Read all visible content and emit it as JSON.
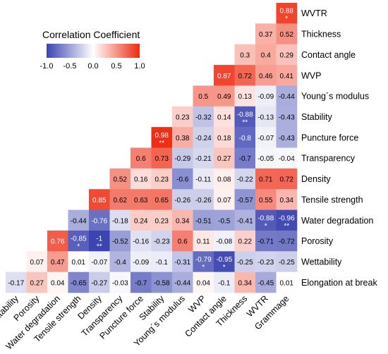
{
  "legend": {
    "title": "Correlation Coefficient",
    "ticks": [
      "-1.0",
      "-0.5",
      "0.0",
      "0.5",
      "1.0"
    ],
    "tick_values": [
      -1.0,
      -0.5,
      0.0,
      0.5,
      1.0
    ],
    "colors": {
      "negative": "#3b44b0",
      "neutral": "#ffffff",
      "positive": "#ee2a10"
    }
  },
  "chart_data": {
    "type": "heatmap",
    "title": "",
    "row_labels": [
      "WVTR",
      "Thickness",
      "Contact angle",
      "WVP",
      "Young´s modulus",
      "Stability",
      "Puncture force",
      "Transparency",
      "Density",
      "Tensile strength",
      "Water degradation",
      "Porosity",
      "Wettability",
      "Elongation at break"
    ],
    "col_labels": [
      "Wettability",
      "Porosity",
      "Water degradation",
      "Tensile strength",
      "Density",
      "Transparency",
      "Puncture force",
      "Stability",
      "Young´s modulus",
      "WVP",
      "Contact angle",
      "Thickness",
      "WVTR",
      "Grammage"
    ],
    "cells": [
      [
        {
          "c": 13,
          "v": "0.88",
          "s": "*"
        }
      ],
      [
        {
          "c": 12,
          "v": "0.37"
        },
        {
          "c": 13,
          "v": "0.52"
        }
      ],
      [
        {
          "c": 11,
          "v": "0.3"
        },
        {
          "c": 12,
          "v": "0.4"
        },
        {
          "c": 13,
          "v": "0.29"
        }
      ],
      [
        {
          "c": 10,
          "v": "0.87"
        },
        {
          "c": 11,
          "v": "0.72"
        },
        {
          "c": 12,
          "v": "0.46"
        },
        {
          "c": 13,
          "v": "0.41"
        }
      ],
      [
        {
          "c": 9,
          "v": "0.5"
        },
        {
          "c": 10,
          "v": "0.49"
        },
        {
          "c": 11,
          "v": "0.13"
        },
        {
          "c": 12,
          "v": "-0.09"
        },
        {
          "c": 13,
          "v": "-0.44"
        }
      ],
      [
        {
          "c": 8,
          "v": "0.23"
        },
        {
          "c": 9,
          "v": "-0.32"
        },
        {
          "c": 10,
          "v": "0.14"
        },
        {
          "c": 11,
          "v": "-0.88",
          "s": "**"
        },
        {
          "c": 12,
          "v": "-0.13"
        },
        {
          "c": 13,
          "v": "-0.43"
        }
      ],
      [
        {
          "c": 7,
          "v": "0.98",
          "s": "**"
        },
        {
          "c": 8,
          "v": "0.38"
        },
        {
          "c": 9,
          "v": "-0.24"
        },
        {
          "c": 10,
          "v": "0.18"
        },
        {
          "c": 11,
          "v": "-0.8"
        },
        {
          "c": 12,
          "v": "-0.07"
        },
        {
          "c": 13,
          "v": "-0.43"
        }
      ],
      [
        {
          "c": 6,
          "v": "0.6"
        },
        {
          "c": 7,
          "v": "0.73"
        },
        {
          "c": 8,
          "v": "-0.29"
        },
        {
          "c": 9,
          "v": "-0.21"
        },
        {
          "c": 10,
          "v": "0.27"
        },
        {
          "c": 11,
          "v": "-0.7"
        },
        {
          "c": 12,
          "v": "-0.05"
        },
        {
          "c": 13,
          "v": "-0.04"
        }
      ],
      [
        {
          "c": 5,
          "v": "0.52"
        },
        {
          "c": 6,
          "v": "0.16"
        },
        {
          "c": 7,
          "v": "0.23"
        },
        {
          "c": 8,
          "v": "-0.6"
        },
        {
          "c": 9,
          "v": "-0.11"
        },
        {
          "c": 10,
          "v": "0.08"
        },
        {
          "c": 11,
          "v": "-0.22"
        },
        {
          "c": 12,
          "v": "0.71"
        },
        {
          "c": 13,
          "v": "0.72"
        }
      ],
      [
        {
          "c": 4,
          "v": "0.85"
        },
        {
          "c": 5,
          "v": "0.62"
        },
        {
          "c": 6,
          "v": "0.63"
        },
        {
          "c": 7,
          "v": "0.65"
        },
        {
          "c": 8,
          "v": "-0.26"
        },
        {
          "c": 9,
          "v": "-0.26"
        },
        {
          "c": 10,
          "v": "0.07"
        },
        {
          "c": 11,
          "v": "-0.57"
        },
        {
          "c": 12,
          "v": "0.55"
        },
        {
          "c": 13,
          "v": "0.34"
        }
      ],
      [
        {
          "c": 3,
          "v": "-0.44"
        },
        {
          "c": 4,
          "v": "-0.76"
        },
        {
          "c": 5,
          "v": "-0.18"
        },
        {
          "c": 6,
          "v": "0.24"
        },
        {
          "c": 7,
          "v": "0.23"
        },
        {
          "c": 8,
          "v": "0.34"
        },
        {
          "c": 9,
          "v": "-0.51"
        },
        {
          "c": 10,
          "v": "-0.5"
        },
        {
          "c": 11,
          "v": "-0.41"
        },
        {
          "c": 12,
          "v": "-0.88",
          "s": "*"
        },
        {
          "c": 13,
          "v": "-0.96",
          "s": "**"
        }
      ],
      [
        {
          "c": 2,
          "v": "0.76"
        },
        {
          "c": 3,
          "v": "-0.85",
          "s": "*"
        },
        {
          "c": 4,
          "v": "-1",
          "s": "**"
        },
        {
          "c": 5,
          "v": "-0.52"
        },
        {
          "c": 6,
          "v": "-0.16"
        },
        {
          "c": 7,
          "v": "-0.23"
        },
        {
          "c": 8,
          "v": "0.6"
        },
        {
          "c": 9,
          "v": "0.11"
        },
        {
          "c": 10,
          "v": "-0.08"
        },
        {
          "c": 11,
          "v": "0.22"
        },
        {
          "c": 12,
          "v": "-0.71"
        },
        {
          "c": 13,
          "v": "-0.72"
        }
      ],
      [
        {
          "c": 1,
          "v": "0.07"
        },
        {
          "c": 2,
          "v": "0.47"
        },
        {
          "c": 3,
          "v": "0.01"
        },
        {
          "c": 4,
          "v": "-0.07"
        },
        {
          "c": 5,
          "v": "-0.4"
        },
        {
          "c": 6,
          "v": "-0.09"
        },
        {
          "c": 7,
          "v": "-0.1"
        },
        {
          "c": 8,
          "v": "-0.31"
        },
        {
          "c": 9,
          "v": "-0.79",
          "s": "*"
        },
        {
          "c": 10,
          "v": "-0.95",
          "s": "*"
        },
        {
          "c": 11,
          "v": "-0.25"
        },
        {
          "c": 12,
          "v": "-0.23"
        },
        {
          "c": 13,
          "v": "-0.25"
        }
      ],
      [
        {
          "c": 0,
          "v": "-0.17"
        },
        {
          "c": 1,
          "v": "0.27"
        },
        {
          "c": 2,
          "v": "0.04"
        },
        {
          "c": 3,
          "v": "-0.65"
        },
        {
          "c": 4,
          "v": "-0.27"
        },
        {
          "c": 5,
          "v": "-0.03"
        },
        {
          "c": 6,
          "v": "-0.7"
        },
        {
          "c": 7,
          "v": "-0.58"
        },
        {
          "c": 8,
          "v": "-0.44"
        },
        {
          "c": 9,
          "v": "0.04"
        },
        {
          "c": 10,
          "v": "-0.1"
        },
        {
          "c": 11,
          "v": "0.34"
        },
        {
          "c": 12,
          "v": "-0.45"
        },
        {
          "c": 13,
          "v": "0.01"
        }
      ]
    ],
    "color_range": [
      -1,
      1
    ],
    "legend_placement": "top-left"
  }
}
